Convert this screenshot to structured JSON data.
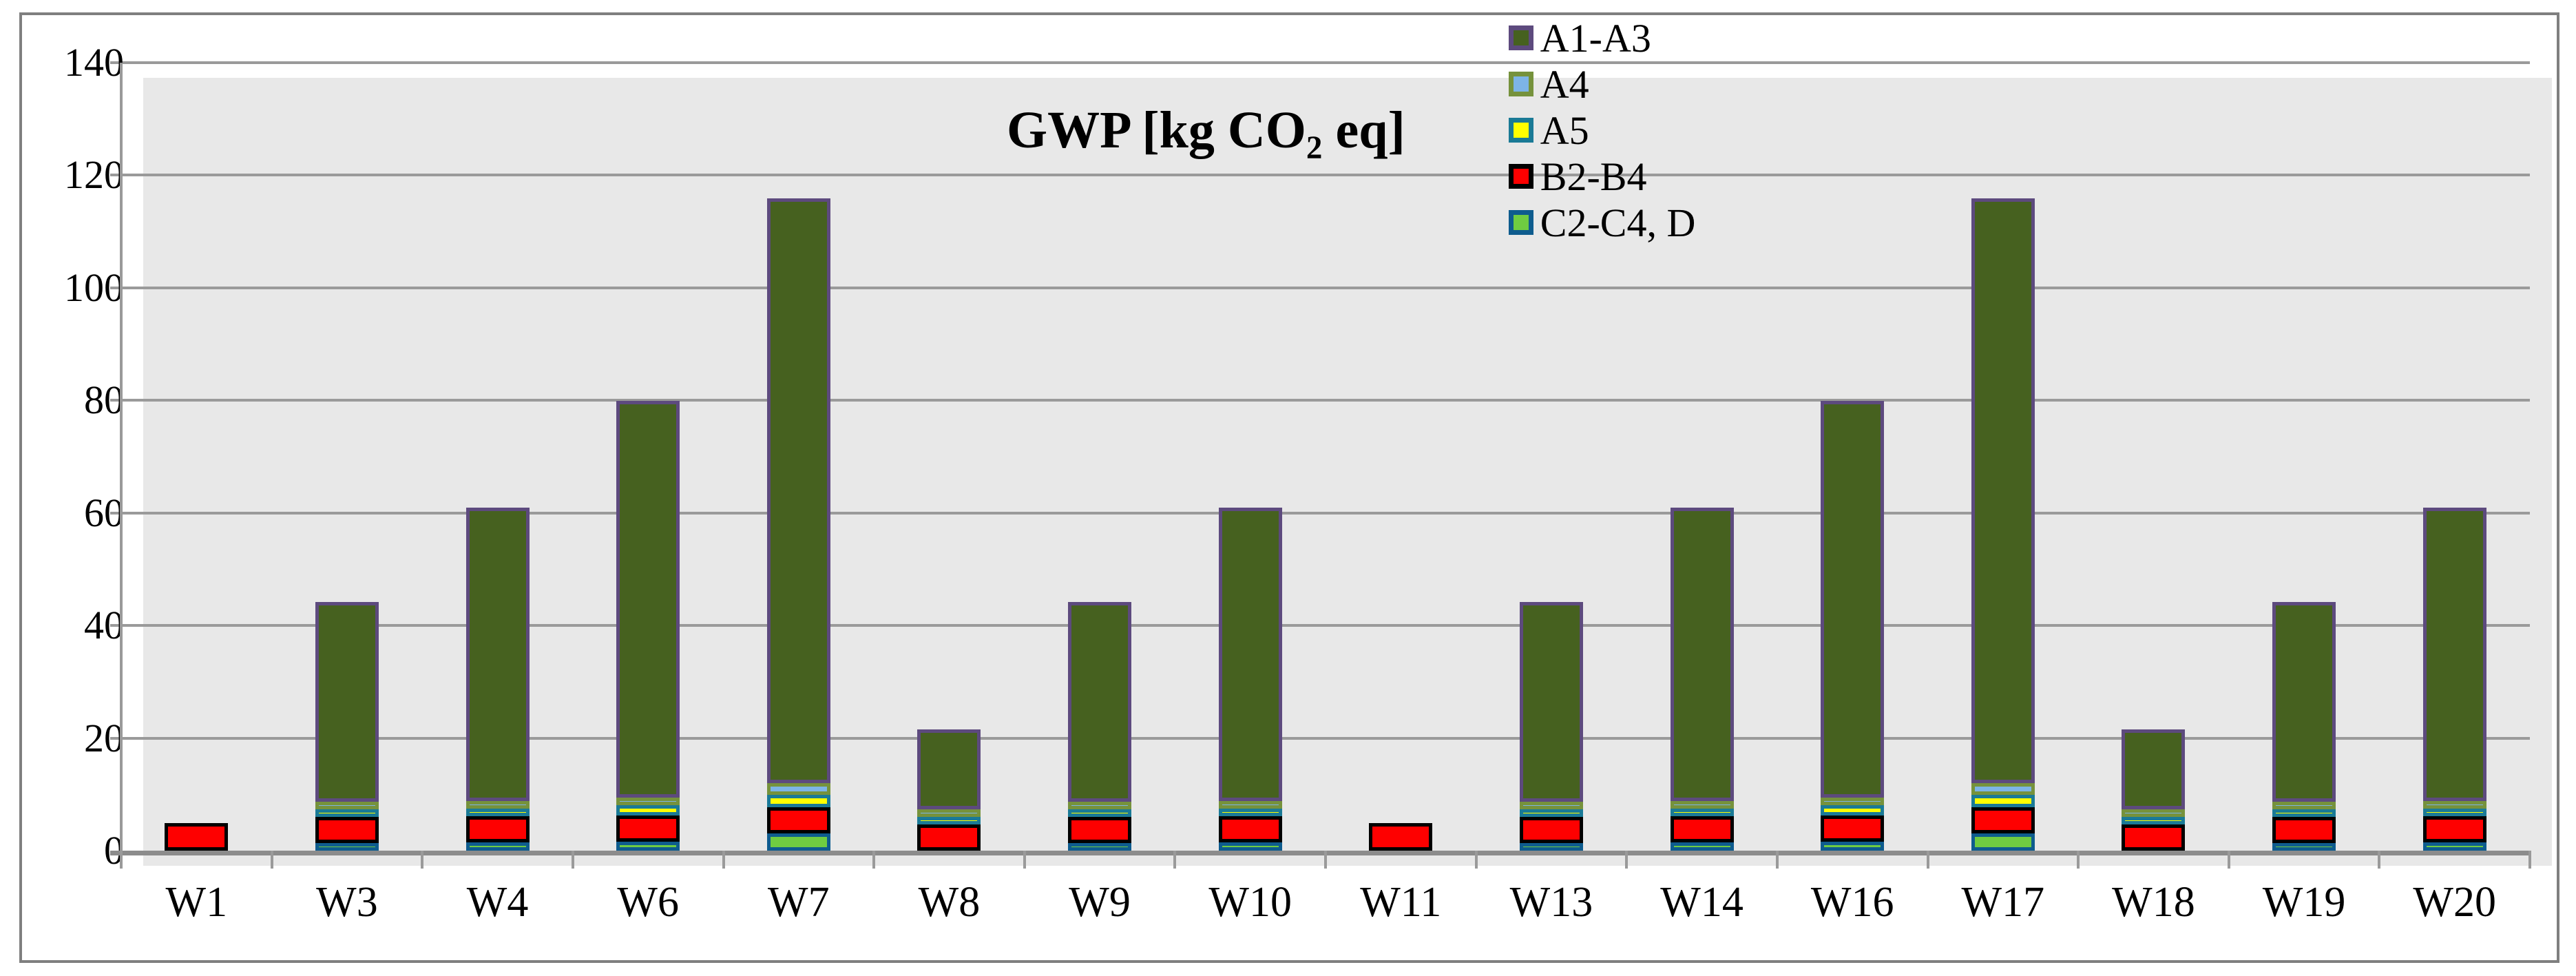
{
  "frame": {
    "border_color": "#7f7f7f"
  },
  "chart_data": {
    "type": "bar",
    "stacked": true,
    "title": "GWP [kg CO2 eq]",
    "title_parts": {
      "pre": "GWP [kg CO",
      "sub": "2",
      "post": " eq]"
    },
    "categories": [
      "W1",
      "W3",
      "W4",
      "W6",
      "W7",
      "W8",
      "W9",
      "W10",
      "W11",
      "W13",
      "W14",
      "W16",
      "W17",
      "W18",
      "W19",
      "W20"
    ],
    "series": [
      {
        "name": "A1-A3",
        "fill": "#46611f",
        "border": "#5d4a7e",
        "values": [
          0,
          35.6,
          52.1,
          70.5,
          103.8,
          14.2,
          35.6,
          52.1,
          0,
          35.6,
          52.1,
          70.5,
          103.8,
          14.2,
          35.6,
          52.1
        ]
      },
      {
        "name": "A4",
        "fill": "#7db4e6",
        "border": "#76923c",
        "values": [
          0,
          0.35,
          0.8,
          1.1,
          2.1,
          0.2,
          0.35,
          0.8,
          0,
          0.35,
          0.8,
          1.1,
          2.1,
          0.2,
          0.35,
          0.8
        ]
      },
      {
        "name": "A5",
        "fill": "#ffff00",
        "border": "#1a7a96",
        "values": [
          0,
          0.9,
          1.3,
          1.9,
          2.3,
          0.3,
          0.9,
          1.3,
          0,
          0.9,
          1.3,
          1.9,
          2.3,
          0.3,
          0.9,
          1.3
        ]
      },
      {
        "name": "B2-B4",
        "fill": "#fe0000",
        "border": "#000000",
        "values": [
          4.9,
          4.6,
          4.6,
          4.6,
          4.65,
          4.6,
          4.6,
          4.6,
          4.9,
          4.6,
          4.6,
          4.6,
          4.65,
          4.6,
          4.6,
          4.6
        ]
      },
      {
        "name": "C2-C4, D",
        "fill": "#6fcc41",
        "border": "#0e5c8e",
        "values": [
          0,
          0.8,
          1.5,
          1.6,
          3.0,
          0,
          0.8,
          1.5,
          0,
          0.8,
          1.5,
          1.6,
          3.0,
          0,
          0.8,
          1.5
        ]
      }
    ],
    "stack_order_bottom_to_top": [
      "C2-C4, D",
      "B2-B4",
      "A5",
      "A4",
      "A1-A3"
    ],
    "y_ticks": [
      0,
      20,
      40,
      60,
      80,
      100,
      120,
      140
    ],
    "ylim": [
      0,
      140
    ],
    "xlabel": "",
    "ylabel": "",
    "grid": true,
    "legend_position": "top-right-inside",
    "plot_bg": "#e8e8e8",
    "gridline_color": "#9a9a9a",
    "baseline_color": "#8c8c8c",
    "text_color": "#000000"
  }
}
